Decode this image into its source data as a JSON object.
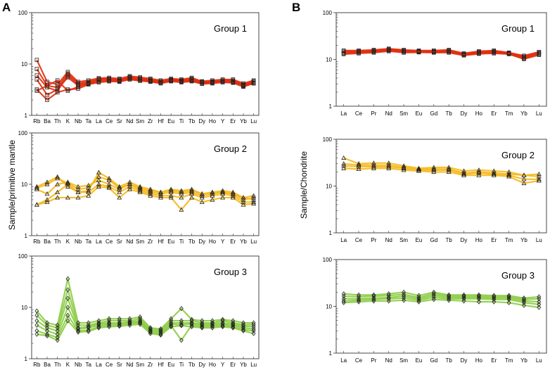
{
  "figure": {
    "panel_a_label": "A",
    "panel_b_label": "B",
    "ylabel_a": "Sample/primitive mantle",
    "ylabel_b": "Sample/Chondrite",
    "group_colors": {
      "Group 1": "#e03010",
      "Group 2": "#f5b81c",
      "Group 3": "#8ccc45"
    }
  },
  "chart_data": [
    {
      "type": "line",
      "panel": "A",
      "title": "Group 1",
      "yscale": "log",
      "ylim": [
        1,
        100
      ],
      "ytick_labels": [
        "1",
        "10",
        "100"
      ],
      "marker": "square",
      "color": "#e03010",
      "categories": [
        "Rb",
        "Ba",
        "Th",
        "K",
        "Nb",
        "Ta",
        "La",
        "Ce",
        "Sr",
        "Nd",
        "Sm",
        "Zr",
        "Hf",
        "Eu",
        "Ti",
        "Tb",
        "Dy",
        "Ho",
        "Y",
        "Er",
        "Yb",
        "Lu"
      ],
      "series": [
        {
          "name": "s1",
          "values": [
            12,
            4.5,
            4,
            7,
            4.5,
            4.8,
            5.3,
            5.4,
            5.2,
            5.8,
            5.5,
            5.2,
            4.8,
            5.2,
            5,
            5.4,
            4.6,
            4.8,
            5,
            5,
            4.2,
            4.8
          ]
        },
        {
          "name": "s2",
          "values": [
            8,
            3.8,
            3.5,
            6.5,
            4.2,
            4.5,
            5.1,
            5.2,
            5,
            5.6,
            5.3,
            5,
            4.6,
            5,
            4.9,
            5.2,
            4.5,
            4.6,
            4.8,
            4.8,
            4,
            4.6
          ]
        },
        {
          "name": "s3",
          "values": [
            6,
            3.5,
            3,
            6,
            4,
            4.3,
            5,
            5,
            4.8,
            5.5,
            5.1,
            4.8,
            4.5,
            4.9,
            4.7,
            5,
            4.4,
            4.5,
            4.7,
            4.6,
            3.9,
            4.5
          ]
        },
        {
          "name": "s4",
          "values": [
            5,
            2.5,
            3.2,
            5.5,
            3.8,
            4.2,
            4.8,
            4.9,
            4.6,
            5.3,
            5,
            4.7,
            4.3,
            4.8,
            4.6,
            4.8,
            4.2,
            4.4,
            4.5,
            4.5,
            3.7,
            4.3
          ]
        },
        {
          "name": "s5",
          "values": [
            3.2,
            2,
            2.8,
            3.2,
            3.3,
            4,
            4.4,
            4.6,
            4.5,
            5,
            4.7,
            4.5,
            4.2,
            4.6,
            4.4,
            4.6,
            4.1,
            4.2,
            4.4,
            4.3,
            3.6,
            4.2
          ]
        },
        {
          "name": "s6",
          "values": [
            3,
            3.8,
            4.8,
            3,
            3.6,
            4.1,
            4.5,
            4.7,
            4.7,
            5.1,
            4.8,
            4.6,
            4.3,
            4.7,
            4.5,
            4.7,
            4.2,
            4.3,
            4.5,
            4.4,
            3.8,
            4.2
          ]
        }
      ]
    },
    {
      "type": "line",
      "panel": "A",
      "title": "Group 2",
      "yscale": "log",
      "ylim": [
        1,
        100
      ],
      "ytick_labels": [
        "1",
        "10",
        "100"
      ],
      "marker": "triangle",
      "color": "#f5b81c",
      "categories": [
        "Rb",
        "Ba",
        "Th",
        "K",
        "Nb",
        "Ta",
        "La",
        "Ce",
        "Sr",
        "Nd",
        "Sm",
        "Zr",
        "Hf",
        "Eu",
        "Ti",
        "Tb",
        "Dy",
        "Ho",
        "Y",
        "Er",
        "Yb",
        "Lu"
      ],
      "series": [
        {
          "name": "s1",
          "values": [
            9,
            11,
            14,
            9,
            7,
            7.5,
            17,
            13,
            9,
            11,
            9,
            8,
            7,
            8,
            7.5,
            8,
            6.5,
            7,
            7.5,
            7,
            5.5,
            6
          ]
        },
        {
          "name": "s2",
          "values": [
            8.5,
            10,
            13,
            10.5,
            8,
            8.5,
            14,
            12,
            8.5,
            10,
            8.5,
            7.5,
            7,
            7.5,
            7,
            7.5,
            6.5,
            7,
            7,
            6.5,
            5,
            5.5
          ]
        },
        {
          "name": "s3",
          "values": [
            8,
            6.5,
            10,
            11,
            9,
            9.5,
            12,
            10,
            8,
            10,
            8,
            7,
            6.5,
            7,
            6.5,
            7,
            6,
            6.5,
            7,
            6.5,
            5.5,
            5
          ]
        },
        {
          "name": "s4",
          "values": [
            4,
            5,
            7,
            10,
            7,
            7,
            10,
            9,
            7,
            9,
            7.5,
            6.5,
            6,
            6,
            5.5,
            6.5,
            5.5,
            6,
            6.5,
            6,
            4.5,
            4.5
          ]
        },
        {
          "name": "s5",
          "values": [
            4,
            4.5,
            5.5,
            5.5,
            5.5,
            6,
            9,
            8.5,
            5.5,
            8,
            7,
            6,
            5.5,
            5.5,
            3.2,
            5.5,
            4.5,
            5,
            5.5,
            5.5,
            4,
            4.2
          ]
        }
      ]
    },
    {
      "type": "line",
      "panel": "A",
      "title": "Group 3",
      "yscale": "log",
      "ylim": [
        1,
        100
      ],
      "ytick_labels": [
        "1",
        "10",
        "100"
      ],
      "marker": "diamond",
      "color": "#8ccc45",
      "categories": [
        "Rb",
        "Ba",
        "Th",
        "K",
        "Nb",
        "Ta",
        "La",
        "Ce",
        "Sr",
        "Nd",
        "Sm",
        "Zr",
        "Hf",
        "Eu",
        "Ti",
        "Tb",
        "Dy",
        "Ho",
        "Y",
        "Er",
        "Yb",
        "Lu"
      ],
      "series": [
        {
          "name": "s1",
          "values": [
            8.5,
            5,
            4.5,
            36,
            5,
            5,
            5.5,
            6,
            6,
            6,
            6.5,
            4,
            3.8,
            6,
            9.5,
            5.8,
            5.5,
            5.5,
            5.8,
            5.5,
            5,
            5
          ]
        },
        {
          "name": "s2",
          "values": [
            7,
            4.5,
            4,
            22,
            4.5,
            4.5,
            5,
            5.5,
            5.5,
            5.5,
            6,
            3.8,
            3.6,
            5.5,
            5.5,
            5.5,
            5,
            5,
            5.5,
            5,
            4.6,
            4.6
          ]
        },
        {
          "name": "s3",
          "values": [
            5.5,
            4,
            3.5,
            15,
            4,
            4.2,
            4.8,
            5,
            5,
            5.2,
            5.5,
            3.6,
            3.4,
            5,
            5,
            5,
            4.7,
            4.8,
            5,
            4.7,
            4.3,
            4.2
          ]
        },
        {
          "name": "s4",
          "values": [
            4.5,
            3.5,
            3,
            10,
            3.8,
            4,
            4.5,
            4.8,
            4.8,
            5,
            5.2,
            3.4,
            3.2,
            4.7,
            4.6,
            4.8,
            4.5,
            4.5,
            4.7,
            4.5,
            4,
            3.8
          ]
        },
        {
          "name": "s5",
          "values": [
            3.5,
            3,
            2.6,
            7,
            3.5,
            3.6,
            4.2,
            4.5,
            4.5,
            4.8,
            5,
            3.3,
            3,
            4.4,
            2.3,
            4.5,
            4.2,
            4.3,
            4.4,
            4.2,
            3.7,
            3.5
          ]
        },
        {
          "name": "s6",
          "values": [
            3,
            2.8,
            2.3,
            5.5,
            3.3,
            3.4,
            4,
            4.2,
            4.3,
            4.5,
            4.7,
            3.1,
            2.9,
            4.2,
            4.4,
            4.2,
            4,
            4,
            4.2,
            4,
            3.5,
            3.1
          ]
        }
      ]
    },
    {
      "type": "line",
      "panel": "B",
      "title": "Group 1",
      "yscale": "log",
      "ylim": [
        1,
        100
      ],
      "ytick_labels": [
        "1",
        "10",
        "100"
      ],
      "marker": "square",
      "color": "#e03010",
      "categories": [
        "La",
        "Ce",
        "Pr",
        "Nd",
        "Sm",
        "Eu",
        "Gd",
        "Tb",
        "Dy",
        "Ho",
        "Er",
        "Tm",
        "Yb",
        "Lu"
      ],
      "series": [
        {
          "name": "s1",
          "values": [
            15.5,
            15.5,
            16,
            17,
            16,
            15.5,
            15.5,
            16,
            13.5,
            15,
            15.5,
            14,
            12,
            14.5
          ]
        },
        {
          "name": "s2",
          "values": [
            14.8,
            15,
            15.5,
            16.5,
            15.5,
            15,
            15,
            15.5,
            13,
            14.5,
            15,
            13.8,
            11.5,
            14
          ]
        },
        {
          "name": "s3",
          "values": [
            14,
            14.5,
            15,
            16,
            15,
            14.8,
            14.5,
            15,
            12.8,
            14,
            14.5,
            13.5,
            11,
            13.5
          ]
        },
        {
          "name": "s4",
          "values": [
            13.5,
            14,
            14.5,
            15.5,
            14.5,
            14.5,
            14.2,
            14.5,
            12.5,
            13.5,
            14,
            13.2,
            10.5,
            13
          ]
        },
        {
          "name": "s5",
          "values": [
            13,
            13.5,
            14,
            15,
            14,
            14.2,
            14,
            14,
            12.2,
            13.2,
            13.5,
            13,
            10.2,
            12.5
          ]
        }
      ]
    },
    {
      "type": "line",
      "panel": "B",
      "title": "Group 2",
      "yscale": "log",
      "ylim": [
        1,
        100
      ],
      "ytick_labels": [
        "1",
        "10",
        "100"
      ],
      "marker": "triangle",
      "color": "#f5b81c",
      "categories": [
        "La",
        "Ce",
        "Pr",
        "Nd",
        "Sm",
        "Eu",
        "Gd",
        "Tb",
        "Dy",
        "Ho",
        "Er",
        "Tm",
        "Yb",
        "Lu"
      ],
      "series": [
        {
          "name": "s1",
          "values": [
            40,
            30,
            31,
            31,
            27,
            24,
            25,
            25,
            21,
            22,
            21,
            20,
            17,
            18
          ]
        },
        {
          "name": "s2",
          "values": [
            30,
            28,
            28,
            28,
            25,
            23,
            23,
            23,
            19,
            20,
            19,
            18,
            17,
            16
          ]
        },
        {
          "name": "s3",
          "values": [
            27,
            26,
            26,
            26,
            24,
            22,
            22,
            22,
            18,
            19,
            18,
            17,
            14,
            14
          ]
        },
        {
          "name": "s4",
          "values": [
            24,
            23,
            24,
            24,
            22,
            21,
            20,
            20,
            17,
            17,
            17,
            16,
            11.5,
            13
          ]
        }
      ]
    },
    {
      "type": "line",
      "panel": "B",
      "title": "Group 3",
      "yscale": "log",
      "ylim": [
        1,
        100
      ],
      "ytick_labels": [
        "1",
        "10",
        "100"
      ],
      "marker": "diamond",
      "color": "#8ccc45",
      "categories": [
        "La",
        "Ce",
        "Pr",
        "Nd",
        "Sm",
        "Eu",
        "Gd",
        "Tb",
        "Dy",
        "Ho",
        "Er",
        "Tm",
        "Yb",
        "Lu"
      ],
      "series": [
        {
          "name": "s1",
          "values": [
            18.5,
            17.5,
            17.5,
            18.5,
            20,
            17,
            20,
            17.5,
            17.5,
            17.5,
            17,
            17,
            15,
            16
          ]
        },
        {
          "name": "s2",
          "values": [
            16.5,
            16,
            16.5,
            17,
            18,
            15.5,
            18.5,
            16.5,
            16.5,
            16.5,
            16,
            16,
            14,
            14.5
          ]
        },
        {
          "name": "s3",
          "values": [
            14.5,
            14.5,
            15,
            15.5,
            16.5,
            14.5,
            17,
            15.5,
            15.5,
            15.5,
            15,
            15,
            13,
            12.5
          ]
        },
        {
          "name": "s4",
          "values": [
            13,
            13.5,
            14,
            14.5,
            15,
            13.5,
            15.5,
            14.5,
            14.5,
            14.5,
            14,
            14,
            12,
            11
          ]
        },
        {
          "name": "s5",
          "values": [
            12,
            12.5,
            13,
            13,
            13.5,
            12.5,
            14,
            13.5,
            13,
            12.5,
            12.5,
            12,
            10.5,
            9.5
          ]
        }
      ]
    }
  ]
}
